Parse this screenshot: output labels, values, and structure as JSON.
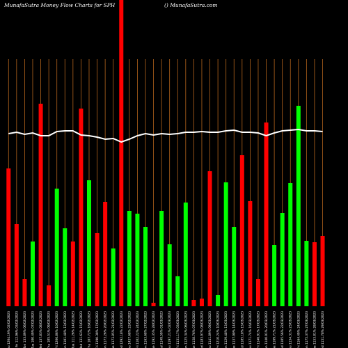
{
  "chart_data": {
    "type": "bar",
    "title": "MunafaSutra  Money Flow  Charts for SPH",
    "subtitle": "() MunafaSutra.com",
    "categories": [
      "22 Thu 1204.19% 02/02/2023",
      "23 Fri 112.06% 03/02/2023",
      "24 Mon 133.89% 06/02/2023",
      "25 Tue 100.49% 07/02/2023",
      "26 Wed 137.83% 08/02/2023",
      "27 Thu 105.51% 09/02/2023",
      "28 Fri 1206.86% 10/02/2023",
      "29 Mon 1101.48% 13/02/2023",
      "30 Tue 111.26% 14/02/2023",
      "31 Wed 131.63% 15/02/2023",
      "01 Thu 107.72% 16/02/2023",
      "02 Fri 1190.30% 17/02/2023",
      "03 Mon 1173.26% 20/02/2023",
      "04 Tue 1173.85% 21/02/2023",
      "05 Wed 1292.18% 22/02/2023",
      "06 Thu 1437.68% 23/02/2023",
      "07 Fri 1102.22% 24/02/2023",
      "08 Mon 1163.68% 27/02/2023",
      "09 Tue 1192.35% 28/02/2023",
      "10 Wed 1149.59% 01/03/2023",
      "11 Thu 1197.21% 02/03/2023",
      "12 Fri 1131.17% 03/03/2023",
      "13 Mon 1125.34% 06/03/2023",
      "14 Tue 1158.76% 07/03/2023",
      "15 Wed 1183.97% 08/03/2023",
      "16 Thu 1141.89% 09/03/2023",
      "17 Fri 1210.24% 10/03/2023",
      "18 Mon 1129.48% 13/03/2023",
      "19 Tue 1137.00% 14/03/2023",
      "20 Wed 1185.18% 15/03/2023",
      "21 Thu 1171.74% 16/03/2023",
      "22 Fri 1146.91% 17/03/2023",
      "23 Mon 1140.01% 20/03/2023",
      "24 Tue 1169.71% 21/03/2023",
      "25 Wed 1105.56% 22/03/2023",
      "26 Thu 1154.31% 23/03/2023",
      "27 Fri 1164.49% 24/03/2023",
      "28 Mon 1175.37% 27/03/2023",
      "29 Tue 1153.81% 28/03/2023",
      "30 Wed 1151.78% 29/03/2023"
    ],
    "values": [
      198,
      118,
      39,
      93,
      291,
      30,
      169,
      112,
      93,
      284,
      181,
      105,
      150,
      83,
      440,
      137,
      133,
      114,
      5,
      137,
      89,
      43,
      149,
      9,
      11,
      194,
      16,
      178,
      114,
      217,
      151,
      39,
      264,
      88,
      134,
      177,
      288,
      94,
      92,
      101
    ],
    "colors": [
      "#ff0000",
      "#ff0000",
      "#ff0000",
      "#00ff00",
      "#ff0000",
      "#ff0000",
      "#00ff00",
      "#00ff00",
      "#ff0000",
      "#ff0000",
      "#00ff00",
      "#ff0000",
      "#ff0000",
      "#00ff00",
      "#ff0000",
      "#00ff00",
      "#00ff00",
      "#00ff00",
      "#ff0000",
      "#00ff00",
      "#00ff00",
      "#00ff00",
      "#00ff00",
      "#ff0000",
      "#ff0000",
      "#ff0000",
      "#00ff00",
      "#00ff00",
      "#00ff00",
      "#ff0000",
      "#ff0000",
      "#ff0000",
      "#ff0000",
      "#00ff00",
      "#00ff00",
      "#00ff00",
      "#00ff00",
      "#00ff00",
      "#ff0000",
      "#ff0000"
    ],
    "line_values": [
      248,
      250,
      247,
      249,
      245,
      245,
      251,
      252,
      252,
      246,
      245,
      243,
      240,
      241,
      236,
      240,
      245,
      248,
      246,
      248,
      247,
      248,
      250,
      250,
      251,
      250,
      250,
      252,
      253,
      250,
      250,
      249,
      245,
      249,
      252,
      253,
      254,
      252,
      252,
      251
    ],
    "line_color": "#ffffff",
    "ylim": [
      0,
      440
    ]
  }
}
